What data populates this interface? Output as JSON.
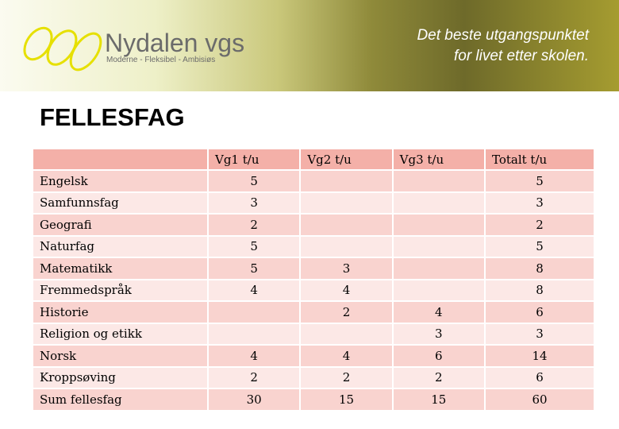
{
  "header": {
    "logo": "Nydalen vgs",
    "tagline": "Moderne - Fleksibel - Ambisiøs",
    "slogan": [
      "Det beste utgangspunktet",
      "for livet etter skolen."
    ]
  },
  "title": "FELLESFAG",
  "table": {
    "columns": [
      "Vg1 t/u",
      "Vg2 t/u",
      "Vg3 t/u",
      "Totalt t/u"
    ],
    "rows": [
      [
        "Engelsk",
        5,
        null,
        null,
        5
      ],
      [
        "Samfunnsfag",
        3,
        null,
        null,
        3
      ],
      [
        "Geografi",
        2,
        null,
        null,
        2
      ],
      [
        "Naturfag",
        5,
        null,
        null,
        5
      ],
      [
        "Matematikk",
        5,
        3,
        null,
        8
      ],
      [
        "Fremmedspråk",
        4,
        4,
        null,
        8
      ],
      [
        "Historie",
        null,
        2,
        4,
        6
      ],
      [
        "Religion og etikk",
        null,
        null,
        3,
        3
      ],
      [
        "Norsk",
        4,
        4,
        6,
        14
      ],
      [
        "Kroppsøving",
        2,
        2,
        2,
        6
      ],
      [
        "Sum fellesfag",
        30,
        15,
        15,
        60
      ]
    ]
  }
}
